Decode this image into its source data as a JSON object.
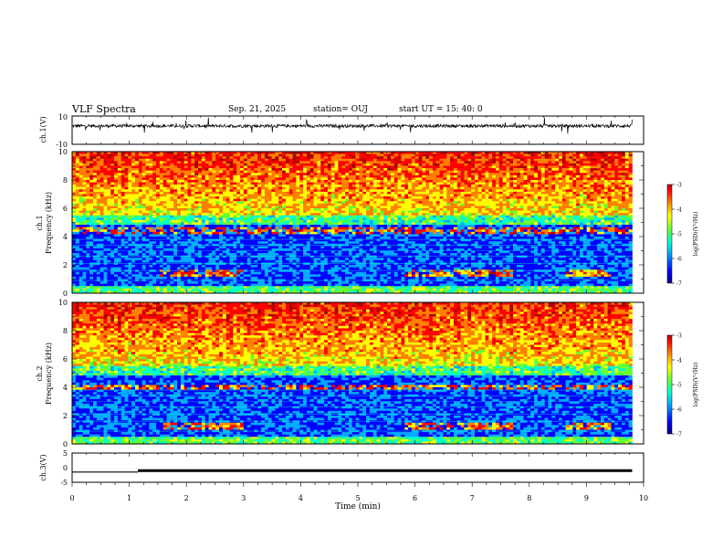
{
  "header": {
    "title": "VLF Spectra",
    "date": "Sep. 21, 2025",
    "station": "station= OUJ",
    "start": "start UT = 15: 40: 0"
  },
  "colors": {
    "colormap": [
      "#00007f",
      "#0000ff",
      "#00aaff",
      "#00ffcc",
      "#66ff33",
      "#ffff00",
      "#ff8000",
      "#ff0000",
      "#b00000"
    ],
    "line": "#000000"
  },
  "chart_data": [
    {
      "type": "line",
      "ylabel": "ch.1(V)",
      "ylim": [
        -10,
        10
      ],
      "yticks": [
        "10",
        "-10"
      ],
      "xlim": [
        0,
        10
      ],
      "description_signal": "noisy broadband waveform centered near 3 V with impulsive spikes",
      "baseline": 3
    },
    {
      "type": "heatmap",
      "ylabel": "ch.1\nFrequency (kHz)",
      "ylim": [
        0,
        10
      ],
      "yticks": [
        "0",
        "2",
        "4",
        "6",
        "8",
        "10"
      ],
      "xlim": [
        0,
        10
      ],
      "colorbar": {
        "label": "log(PSD)(V²/Hz)",
        "range": [
          -7,
          -3
        ],
        "ticks": [
          "-3",
          "-4",
          "-5",
          "-6",
          "-7"
        ]
      },
      "band_level_kHz": 4.4,
      "low_band_kHz": 1.4
    },
    {
      "type": "heatmap",
      "ylabel": "ch.2\nFrequency (kHz)",
      "ylim": [
        0,
        10
      ],
      "yticks": [
        "0",
        "2",
        "4",
        "6",
        "8",
        "10"
      ],
      "xlim": [
        0,
        10
      ],
      "colorbar": {
        "label": "log(PSD)(V²/Hz)",
        "range": [
          -7,
          -3
        ],
        "ticks": [
          "-3",
          "-4",
          "-5",
          "-6",
          "-7"
        ]
      },
      "band_level_kHz": 4.0,
      "low_band_kHz": 1.2
    },
    {
      "type": "line",
      "ylabel": "ch.3(V)",
      "ylim": [
        -5,
        5
      ],
      "yticks": [
        "5",
        "0",
        "-5"
      ],
      "xlim": [
        0,
        10
      ],
      "xlabel": "Time (min)",
      "xticks": [
        "0",
        "1",
        "2",
        "3",
        "4",
        "5",
        "6",
        "7",
        "8",
        "9",
        "10"
      ],
      "segments": [
        {
          "x": [
            0,
            1.15
          ],
          "y": -1.5
        },
        {
          "x": [
            1.15,
            9.8
          ],
          "y": -1.0
        }
      ]
    }
  ]
}
